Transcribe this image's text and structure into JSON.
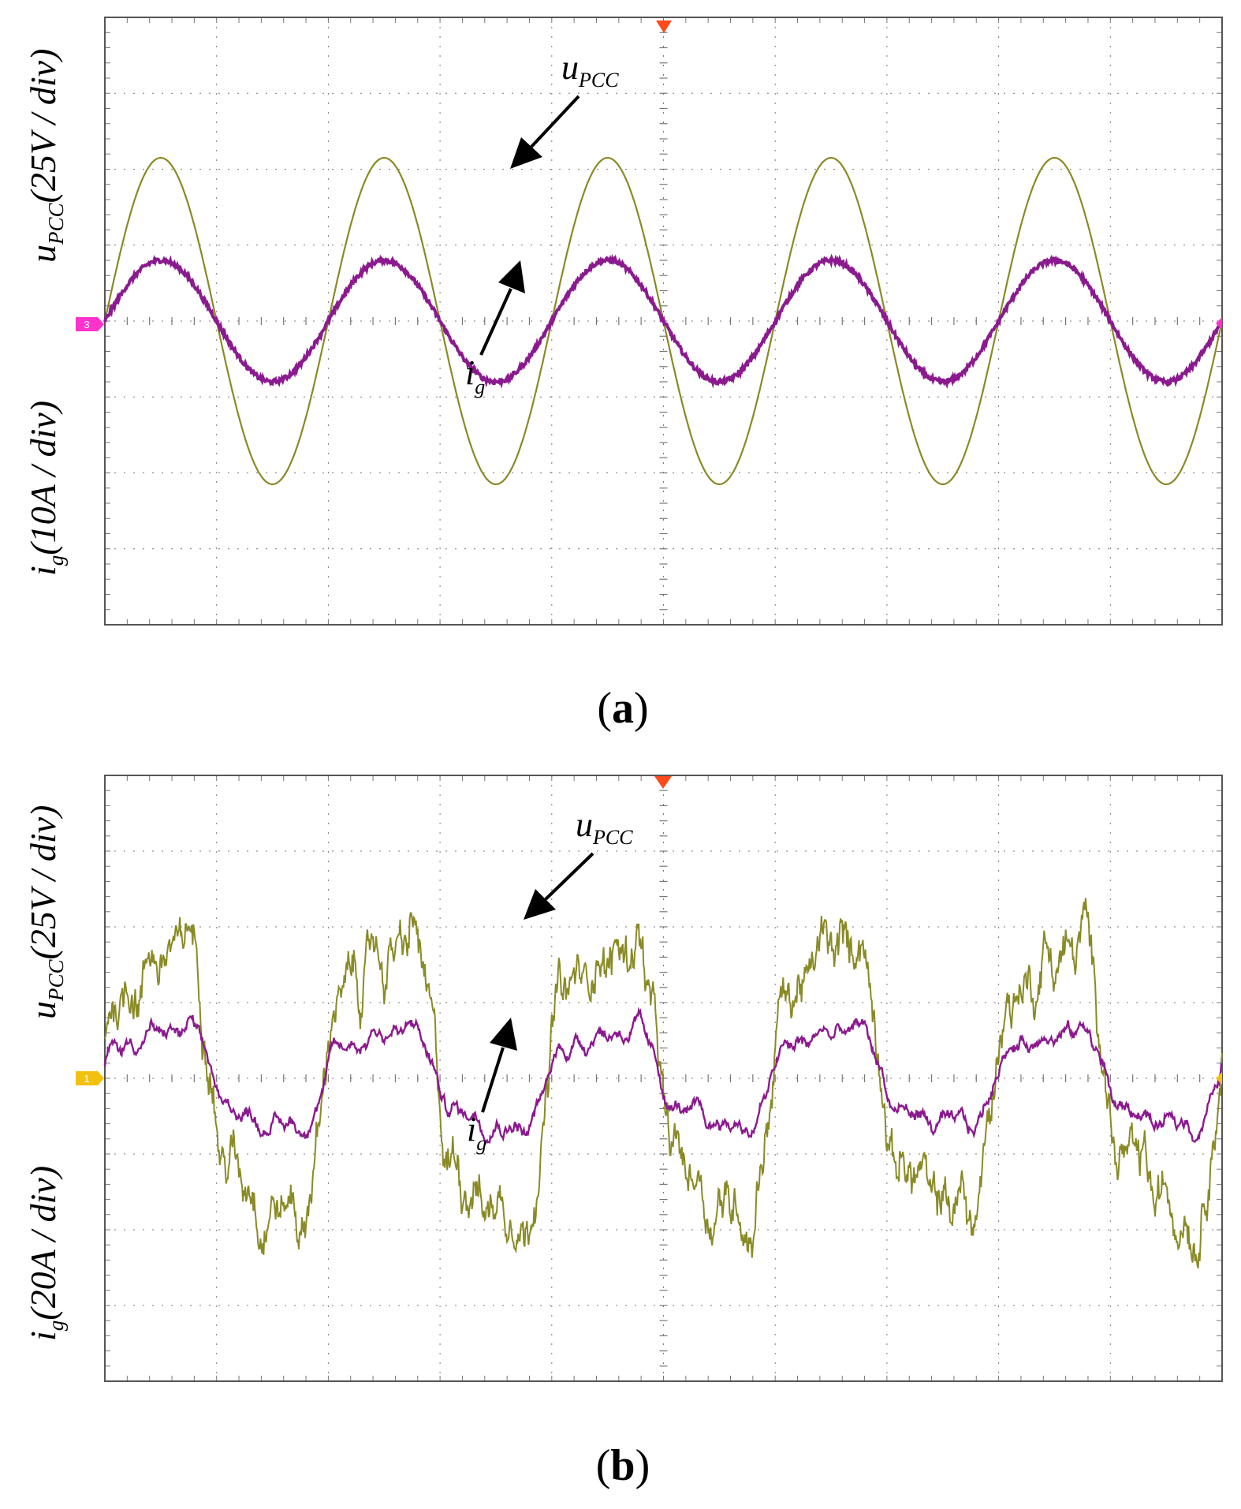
{
  "colors": {
    "voltage": "#8a8a26",
    "current": "#8b1a8f",
    "grid": "#777777",
    "frame": "#555555",
    "trigger": "#ff4a1a",
    "marker_a": "#ff33cc",
    "marker_b": "#f2c10f"
  },
  "panels": [
    {
      "caption_letter": "a",
      "ylabel_voltage": {
        "var": "u",
        "sub": "PCC",
        "scale": "(25V / div)"
      },
      "ylabel_current": {
        "var": "i",
        "sub": "g",
        "scale": "(10A / div)"
      },
      "annot_voltage": {
        "var": "u",
        "sub": "PCC"
      },
      "annot_current": {
        "var": "i",
        "sub": "g"
      },
      "channel_marker": "3"
    },
    {
      "caption_letter": "b",
      "ylabel_voltage": {
        "var": "u",
        "sub": "PCC",
        "scale": "(25V / div)"
      },
      "ylabel_current": {
        "var": "i",
        "sub": "g",
        "scale": "(20A / div)"
      },
      "annot_voltage": {
        "var": "u",
        "sub": "PCC"
      },
      "annot_current": {
        "var": "i",
        "sub": "g"
      },
      "channel_marker": "1"
    }
  ],
  "chart_data": [
    {
      "type": "line",
      "title": "(a)",
      "x_unit": "div",
      "xlim": [
        0,
        10
      ],
      "ylim": [
        -4,
        4
      ],
      "grid": true,
      "series": [
        {
          "name": "u_PCC",
          "y_unit": "div (25V/div)",
          "shape": "sinusoid",
          "amplitude": 2.15,
          "cycles": 5,
          "phase_deg": 0,
          "noise": 0
        },
        {
          "name": "i_g",
          "y_unit": "div (10A/div)",
          "shape": "sinusoid",
          "amplitude": 0.8,
          "cycles": 5,
          "phase_deg": 0,
          "noise": 0.03
        }
      ]
    },
    {
      "type": "line",
      "title": "(b)",
      "x_unit": "div",
      "xlim": [
        0,
        10
      ],
      "ylim": [
        -4,
        4
      ],
      "grid": true,
      "series": [
        {
          "name": "u_PCC",
          "y_unit": "div (25V/div)",
          "shape": "distorted sinusoid",
          "amplitude": 1.9,
          "cycles": 5,
          "phase_deg": 0,
          "noise": 0.35
        },
        {
          "name": "i_g",
          "y_unit": "div (20A/div)",
          "shape": "distorted sinusoid",
          "amplitude": 0.7,
          "cycles": 5,
          "phase_deg": 0,
          "noise": 0.1
        }
      ]
    }
  ]
}
